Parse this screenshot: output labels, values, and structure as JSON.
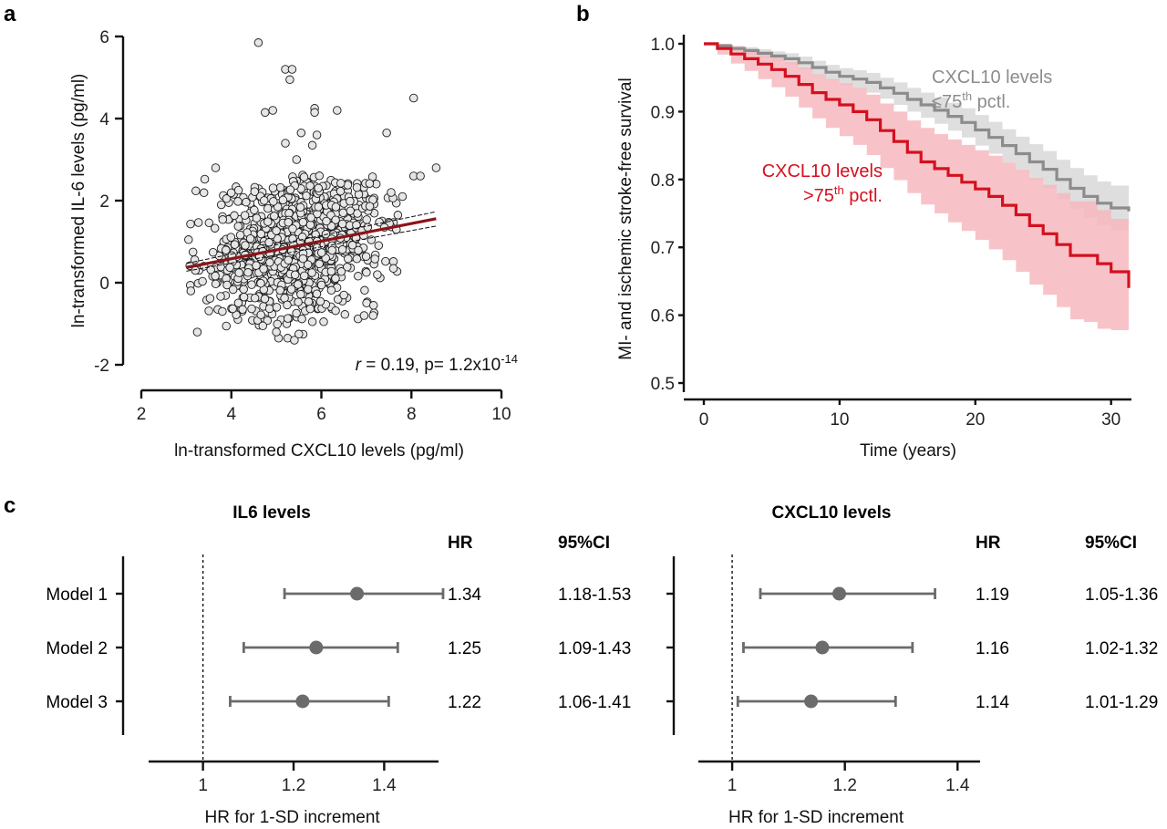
{
  "panels": {
    "a": "a",
    "b": "b",
    "c": "c"
  },
  "chart_data": [
    {
      "panel": "a",
      "type": "scatter",
      "xlabel": "ln-transformed CXCL10 levels (pg/ml)",
      "ylabel": "ln-transformed IL-6 levels (pg/ml)",
      "xlim": [
        2,
        10
      ],
      "ylim": [
        -2,
        6
      ],
      "xticks": [
        "2",
        "4",
        "6",
        "8",
        "10"
      ],
      "yticks": [
        "-2",
        "0",
        "2",
        "4",
        "6"
      ],
      "points": [
        {
          "x": 4.6,
          "y": 5.85
        },
        {
          "x": 5.2,
          "y": 5.2
        },
        {
          "x": 5.35,
          "y": 5.2
        },
        {
          "x": 5.3,
          "y": 4.95
        },
        {
          "x": 4.75,
          "y": 4.15
        },
        {
          "x": 4.92,
          "y": 4.2
        },
        {
          "x": 5.85,
          "y": 4.25
        },
        {
          "x": 5.85,
          "y": 4.15
        },
        {
          "x": 6.35,
          "y": 4.2
        },
        {
          "x": 8.05,
          "y": 4.5
        },
        {
          "x": 7.45,
          "y": 3.65
        },
        {
          "x": 5.55,
          "y": 3.65
        },
        {
          "x": 5.9,
          "y": 3.6
        },
        {
          "x": 5.2,
          "y": 3.4
        },
        {
          "x": 5.45,
          "y": 3.0
        },
        {
          "x": 5.8,
          "y": 3.35
        },
        {
          "x": 3.65,
          "y": 2.8
        },
        {
          "x": 8.55,
          "y": 2.8
        },
        {
          "x": 8.05,
          "y": 2.6
        },
        {
          "x": 8.2,
          "y": 2.6
        },
        {
          "x": 7.8,
          "y": 2.1
        },
        {
          "x": 7.55,
          "y": 2.2
        },
        {
          "x": 7.7,
          "y": 1.65
        },
        {
          "x": 3.05,
          "y": 1.05
        },
        {
          "x": 3.1,
          "y": -0.2
        },
        {
          "x": 3.2,
          "y": 0.3
        },
        {
          "x": 3.7,
          "y": -0.65
        },
        {
          "x": 3.8,
          "y": -0.7
        },
        {
          "x": 4.25,
          "y": -0.65
        },
        {
          "x": 4.7,
          "y": -1.05
        },
        {
          "x": 5.05,
          "y": -1.35
        },
        {
          "x": 5.25,
          "y": -1.35
        },
        {
          "x": 5.4,
          "y": -1.4
        },
        {
          "x": 5.5,
          "y": -1.25
        },
        {
          "x": 5.0,
          "y": -1.2
        },
        {
          "x": 6.05,
          "y": -0.95
        },
        {
          "x": 6.95,
          "y": -0.8
        },
        {
          "x": 7.15,
          "y": -0.8
        },
        {
          "x": 7.6,
          "y": 0.35
        },
        {
          "x": 7.4,
          "y": 1.35
        },
        {
          "x": 6.5,
          "y": -0.3
        },
        {
          "x": 5.8,
          "y": -0.95
        }
      ],
      "cloud": {
        "n": 1050,
        "x_mean": 5.4,
        "x_sd": 0.95,
        "y_mean": 0.9,
        "y_sd": 0.82
      },
      "regression": {
        "x": [
          3.0,
          8.55
        ],
        "y": [
          0.37,
          1.56
        ],
        "ci_low": [
          0.28,
          1.38
        ],
        "ci_high": [
          0.47,
          1.73
        ]
      },
      "annotation": {
        "r_symbol": "r",
        "text": " = 0.19, p= 1.2x10",
        "exponent": "-14"
      },
      "colors": {
        "points": "#e6e6e6",
        "point_stroke": "#1a1a1a",
        "line": "#8b1418"
      }
    },
    {
      "panel": "b",
      "type": "line",
      "xlabel": "Time (years)",
      "ylabel": "MI- and ischemic stroke-free survival",
      "xlim": [
        0,
        31.5
      ],
      "ylim": [
        0.5,
        1.0
      ],
      "xticks": [
        "0",
        "10",
        "20",
        "30"
      ],
      "yticks": [
        "0.5",
        "0.6",
        "0.7",
        "0.8",
        "0.9",
        "1.0"
      ],
      "series": [
        {
          "name": "CXCL10 levels ≤75th pctl.",
          "label_main": "CXCL10 levels",
          "label_prefix": "≤75",
          "label_sup": "th",
          "label_suffix": " pctl.",
          "color": "#8c8c8c",
          "band": "#dedede",
          "x": [
            0,
            1,
            2,
            3,
            4,
            5,
            6,
            7,
            8,
            9,
            10,
            11,
            12,
            13,
            14,
            15,
            16,
            17,
            18,
            19,
            20,
            21,
            22,
            23,
            24,
            25,
            26,
            27,
            28,
            29,
            30,
            31.3
          ],
          "y": [
            1.0,
            0.997,
            0.993,
            0.99,
            0.986,
            0.982,
            0.978,
            0.972,
            0.965,
            0.958,
            0.952,
            0.948,
            0.943,
            0.935,
            0.927,
            0.918,
            0.91,
            0.902,
            0.893,
            0.884,
            0.873,
            0.862,
            0.85,
            0.838,
            0.826,
            0.815,
            0.8,
            0.787,
            0.775,
            0.765,
            0.758,
            0.753
          ],
          "lo": [
            1.0,
            0.994,
            0.989,
            0.984,
            0.979,
            0.974,
            0.969,
            0.962,
            0.954,
            0.946,
            0.939,
            0.934,
            0.928,
            0.919,
            0.91,
            0.9,
            0.891,
            0.882,
            0.872,
            0.862,
            0.85,
            0.838,
            0.825,
            0.812,
            0.799,
            0.787,
            0.771,
            0.757,
            0.744,
            0.733,
            0.725,
            0.718
          ],
          "hi": [
            1.0,
            1.0,
            0.997,
            0.995,
            0.992,
            0.989,
            0.986,
            0.981,
            0.975,
            0.969,
            0.964,
            0.961,
            0.957,
            0.95,
            0.943,
            0.935,
            0.928,
            0.921,
            0.913,
            0.905,
            0.895,
            0.885,
            0.874,
            0.863,
            0.852,
            0.842,
            0.829,
            0.817,
            0.806,
            0.797,
            0.791,
            0.788
          ]
        },
        {
          "name": "CXCL10 levels >75th pctl.",
          "label_main": "CXCL10 levels",
          "label_prefix": ">75",
          "label_sup": "th",
          "label_suffix": " pctl.",
          "color": "#d4101f",
          "band": "#f7b8be",
          "x": [
            0,
            1,
            2,
            3,
            4,
            5,
            6,
            7,
            8,
            9,
            10,
            11,
            12,
            13,
            14,
            15,
            16,
            17,
            18,
            19,
            20,
            21,
            22,
            23,
            24,
            25,
            26,
            27,
            28,
            29,
            30,
            31.3
          ],
          "y": [
            1.0,
            0.993,
            0.985,
            0.978,
            0.97,
            0.962,
            0.952,
            0.94,
            0.928,
            0.918,
            0.91,
            0.9,
            0.888,
            0.872,
            0.856,
            0.84,
            0.826,
            0.816,
            0.806,
            0.796,
            0.786,
            0.775,
            0.762,
            0.748,
            0.732,
            0.72,
            0.704,
            0.688,
            0.688,
            0.676,
            0.664,
            0.64
          ],
          "lo": [
            1.0,
            0.984,
            0.971,
            0.96,
            0.948,
            0.936,
            0.922,
            0.906,
            0.89,
            0.876,
            0.864,
            0.851,
            0.836,
            0.817,
            0.799,
            0.78,
            0.763,
            0.75,
            0.737,
            0.724,
            0.711,
            0.697,
            0.681,
            0.664,
            0.645,
            0.63,
            0.612,
            0.594,
            0.59,
            0.58,
            0.578,
            0.572
          ],
          "hi": [
            1.0,
            1.0,
            0.996,
            0.991,
            0.986,
            0.98,
            0.973,
            0.965,
            0.955,
            0.948,
            0.942,
            0.935,
            0.925,
            0.912,
            0.9,
            0.887,
            0.876,
            0.867,
            0.859,
            0.851,
            0.843,
            0.835,
            0.825,
            0.814,
            0.802,
            0.792,
            0.78,
            0.768,
            0.768,
            0.755,
            0.742,
            0.72
          ]
        }
      ]
    },
    {
      "panel": "c-left",
      "type": "forest",
      "title": "IL6 levels",
      "xlabel": "HR for 1-SD increment",
      "xlim": [
        0.88,
        1.52
      ],
      "xticks": [
        "1",
        "1.2",
        "1.4"
      ],
      "reference": 1,
      "columns": {
        "hr": "HR",
        "ci": "95%CI"
      },
      "rows": [
        {
          "label": "Model 1",
          "hr": 1.34,
          "low": 1.18,
          "high": 1.53,
          "hr_text": "1.34",
          "ci_text": "1.18-1.53"
        },
        {
          "label": "Model 2",
          "hr": 1.25,
          "low": 1.09,
          "high": 1.43,
          "hr_text": "1.25",
          "ci_text": "1.09-1.43"
        },
        {
          "label": "Model 3",
          "hr": 1.22,
          "low": 1.06,
          "high": 1.41,
          "hr_text": "1.22",
          "ci_text": "1.06-1.41"
        }
      ],
      "colors": {
        "marker": "#6b6b6b"
      }
    },
    {
      "panel": "c-right",
      "type": "forest",
      "title": "CXCL10 levels",
      "xlabel": "HR for 1-SD increment",
      "xlim": [
        0.94,
        1.44
      ],
      "xticks": [
        "1",
        "1.2",
        "1.4"
      ],
      "reference": 1,
      "columns": {
        "hr": "HR",
        "ci": "95%CI"
      },
      "rows": [
        {
          "label": "Model 1",
          "hr": 1.19,
          "low": 1.05,
          "high": 1.36,
          "hr_text": "1.19",
          "ci_text": "1.05-1.36"
        },
        {
          "label": "Model 2",
          "hr": 1.16,
          "low": 1.02,
          "high": 1.32,
          "hr_text": "1.16",
          "ci_text": "1.02-1.32"
        },
        {
          "label": "Model 3",
          "hr": 1.14,
          "low": 1.01,
          "high": 1.29,
          "hr_text": "1.14",
          "ci_text": "1.01-1.29"
        }
      ],
      "colors": {
        "marker": "#6b6b6b"
      }
    }
  ]
}
